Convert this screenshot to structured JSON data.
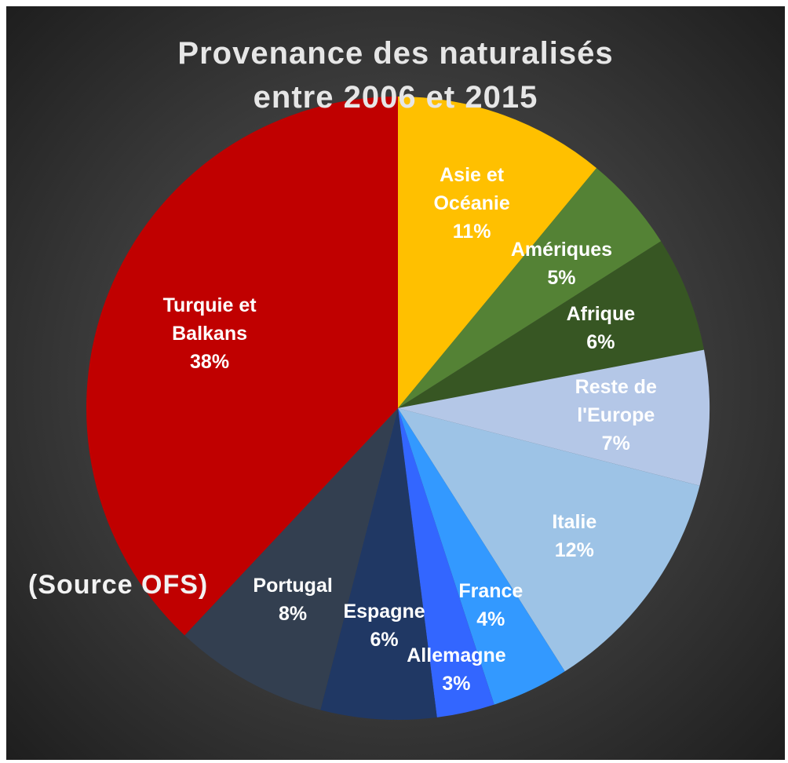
{
  "chart_data": {
    "type": "pie",
    "title": "Provenance des naturalisés entre 2006 et 2015",
    "source": "(Source OFS)",
    "categories": [
      "Asie et Océanie",
      "Amériques",
      "Afrique",
      "Reste de l'Europe",
      "Italie",
      "France",
      "Allemagne",
      "Espagne",
      "Portugal",
      "Turquie et Balkans"
    ],
    "values": [
      11,
      5,
      6,
      7,
      12,
      4,
      3,
      6,
      8,
      38
    ],
    "value_labels": [
      "11%",
      "5%",
      "6%",
      "7%",
      "12%",
      "4%",
      "3%",
      "6%",
      "8%",
      "38%"
    ],
    "colors": [
      "#ffc000",
      "#548235",
      "#375623",
      "#b4c7e7",
      "#9dc3e6",
      "#3399ff",
      "#3366ff",
      "#203864",
      "#333f50",
      "#c00000"
    ]
  }
}
